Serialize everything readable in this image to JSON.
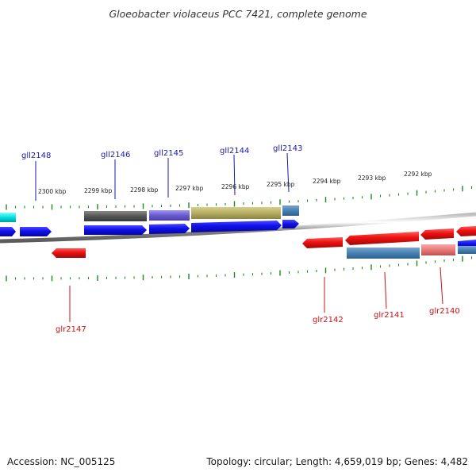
{
  "title": "Gloeobacter violaceus PCC 7421, complete genome",
  "footer": {
    "accession": "Accession: NC_005125",
    "summary": "Topology: circular; Length: 4,659,019 bp; Genes: 4,482"
  },
  "scale_labels": [
    "2300 kbp",
    "2299 kbp",
    "2298 kbp",
    "2297 kbp",
    "2296 kbp",
    "2295 kbp",
    "2294 kbp",
    "2293 kbp",
    "2292 kbp"
  ],
  "genes": {
    "forward": [
      "gll2148",
      "gll2146",
      "gll2145",
      "gll2144",
      "gll2143"
    ],
    "reverse": [
      "glr2147",
      "glr2142",
      "glr2141",
      "glr2140"
    ]
  },
  "colors": {
    "forward_gene": "#1010ee",
    "reverse_gene": "#ee1010",
    "forward_label": "#1a1aa8",
    "reverse_label": "#cc1010",
    "tick": "#1a8a1a",
    "backbone": "#888888"
  }
}
